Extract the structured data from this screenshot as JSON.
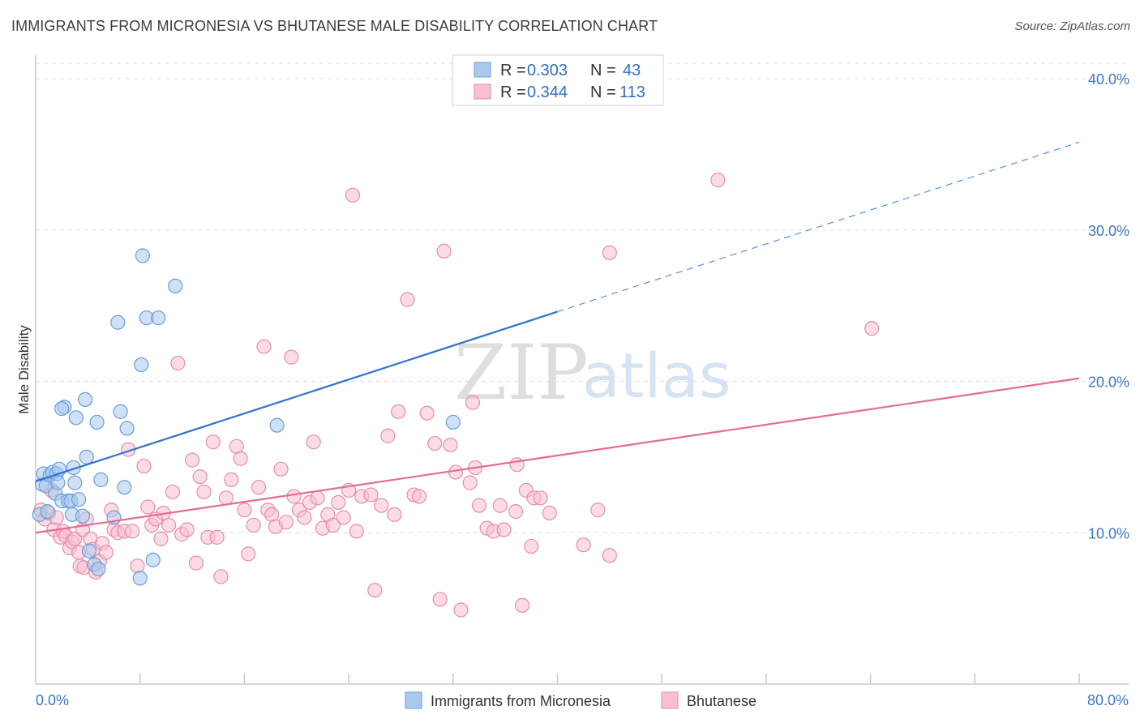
{
  "header": {
    "title": "IMMIGRANTS FROM MICRONESIA VS BHUTANESE MALE DISABILITY CORRELATION CHART",
    "source": "Source: ZipAtlas.com"
  },
  "watermark": {
    "part1": "ZIP",
    "part2": "atlas"
  },
  "colors": {
    "blue_fill": "#aac8ee",
    "blue_stroke": "#6a9ed8",
    "blue_line": "#2f73d0",
    "pink_fill": "#f7bfd0",
    "pink_stroke": "#e58eab",
    "pink_line": "#e46b98",
    "axis_text": "#3a78c8",
    "grid": "#dddddd"
  },
  "legend": {
    "rows": [
      {
        "r_label": "R =",
        "r_value": "0.303",
        "n_label": "N =",
        "n_value": "43"
      },
      {
        "r_label": "R =",
        "r_value": "0.344",
        "n_label": "N =",
        "n_value": "113"
      }
    ]
  },
  "chart_data": {
    "type": "scatter",
    "title": "IMMIGRANTS FROM MICRONESIA VS BHUTANESE MALE DISABILITY CORRELATION CHART",
    "xlabel": "",
    "ylabel": "Male Disability",
    "xlim": [
      0,
      80
    ],
    "ylim": [
      0,
      41.5
    ],
    "y_ticks": [
      10,
      20,
      30,
      40
    ],
    "y_tick_labels": [
      "10.0%",
      "20.0%",
      "30.0%",
      "40.0%"
    ],
    "x_tick_labels": [
      "0.0%",
      "80.0%"
    ],
    "x_minor_ticks": [
      8,
      16,
      24,
      32,
      40,
      48,
      56,
      64,
      72,
      80
    ],
    "series": [
      {
        "name": "Immigrants from Micronesia",
        "color": "blue",
        "R": 0.303,
        "N": 43,
        "trend": {
          "x0": 0,
          "y0": 13.4,
          "x1": 40,
          "y1": 24.6,
          "dash_to_x": 80,
          "dash_to_y": 35.8
        },
        "points": [
          [
            0.3,
            11.2
          ],
          [
            0.5,
            13.2
          ],
          [
            0.6,
            13.9
          ],
          [
            0.8,
            13.1
          ],
          [
            0.9,
            11.4
          ],
          [
            1.1,
            13.8
          ],
          [
            1.3,
            14.0
          ],
          [
            1.5,
            12.6
          ],
          [
            1.6,
            13.9
          ],
          [
            1.7,
            13.3
          ],
          [
            1.8,
            14.2
          ],
          [
            2.0,
            12.1
          ],
          [
            2.2,
            18.3
          ],
          [
            2.5,
            12.1
          ],
          [
            2.7,
            12.1
          ],
          [
            2.8,
            11.2
          ],
          [
            2.9,
            14.3
          ],
          [
            3.0,
            13.3
          ],
          [
            3.1,
            17.6
          ],
          [
            3.3,
            12.2
          ],
          [
            3.6,
            11.1
          ],
          [
            3.8,
            18.8
          ],
          [
            3.9,
            15.0
          ],
          [
            4.1,
            8.8
          ],
          [
            4.5,
            7.9
          ],
          [
            4.7,
            17.3
          ],
          [
            4.8,
            7.6
          ],
          [
            5.0,
            13.5
          ],
          [
            6.0,
            11.0
          ],
          [
            6.3,
            23.9
          ],
          [
            6.5,
            18.0
          ],
          [
            6.8,
            13.0
          ],
          [
            7.0,
            16.9
          ],
          [
            8.0,
            7.0
          ],
          [
            8.1,
            21.1
          ],
          [
            8.2,
            28.3
          ],
          [
            8.5,
            24.2
          ],
          [
            9.0,
            8.2
          ],
          [
            9.4,
            24.2
          ],
          [
            10.7,
            26.3
          ],
          [
            18.5,
            17.1
          ],
          [
            32.0,
            17.3
          ],
          [
            2.0,
            18.2
          ]
        ]
      },
      {
        "name": "Bhutanese",
        "color": "pink",
        "R": 0.344,
        "N": 113,
        "trend": {
          "x0": 0,
          "y0": 10.0,
          "x1": 80,
          "y1": 20.2
        },
        "points": [
          [
            0.4,
            11.5
          ],
          [
            0.7,
            10.9
          ],
          [
            1.0,
            11.3
          ],
          [
            1.2,
            12.8
          ],
          [
            1.4,
            10.2
          ],
          [
            1.6,
            11.0
          ],
          [
            1.9,
            9.7
          ],
          [
            2.1,
            10.1
          ],
          [
            2.3,
            9.8
          ],
          [
            2.6,
            9.0
          ],
          [
            2.8,
            9.4
          ],
          [
            3.0,
            9.6
          ],
          [
            3.3,
            8.7
          ],
          [
            3.4,
            7.8
          ],
          [
            3.6,
            10.2
          ],
          [
            3.7,
            7.7
          ],
          [
            3.9,
            10.9
          ],
          [
            4.2,
            9.6
          ],
          [
            4.4,
            8.9
          ],
          [
            4.6,
            7.4
          ],
          [
            4.9,
            8.1
          ],
          [
            5.1,
            9.3
          ],
          [
            5.4,
            8.7
          ],
          [
            5.8,
            11.5
          ],
          [
            6.0,
            10.2
          ],
          [
            6.3,
            10.0
          ],
          [
            6.8,
            10.1
          ],
          [
            7.1,
            15.5
          ],
          [
            7.4,
            10.1
          ],
          [
            7.8,
            7.8
          ],
          [
            8.3,
            14.4
          ],
          [
            8.6,
            11.7
          ],
          [
            8.9,
            10.5
          ],
          [
            9.2,
            10.9
          ],
          [
            9.6,
            9.6
          ],
          [
            9.8,
            11.3
          ],
          [
            10.2,
            10.5
          ],
          [
            10.5,
            12.7
          ],
          [
            10.9,
            21.2
          ],
          [
            11.2,
            9.9
          ],
          [
            11.6,
            10.2
          ],
          [
            12.0,
            14.8
          ],
          [
            12.3,
            8.0
          ],
          [
            12.6,
            13.7
          ],
          [
            12.9,
            12.7
          ],
          [
            13.2,
            9.7
          ],
          [
            13.6,
            16.0
          ],
          [
            13.9,
            9.7
          ],
          [
            14.2,
            7.1
          ],
          [
            14.6,
            12.3
          ],
          [
            15.0,
            13.5
          ],
          [
            15.4,
            15.7
          ],
          [
            15.7,
            14.9
          ],
          [
            16.0,
            11.5
          ],
          [
            16.3,
            8.6
          ],
          [
            16.7,
            10.5
          ],
          [
            17.1,
            13.0
          ],
          [
            17.5,
            22.3
          ],
          [
            17.8,
            11.5
          ],
          [
            18.1,
            11.2
          ],
          [
            18.4,
            10.4
          ],
          [
            18.8,
            14.2
          ],
          [
            19.2,
            10.7
          ],
          [
            19.6,
            21.6
          ],
          [
            19.8,
            12.4
          ],
          [
            20.2,
            11.5
          ],
          [
            20.6,
            11.0
          ],
          [
            21.0,
            12.0
          ],
          [
            21.3,
            16.0
          ],
          [
            21.6,
            12.3
          ],
          [
            22.0,
            10.3
          ],
          [
            22.4,
            11.2
          ],
          [
            22.8,
            10.5
          ],
          [
            23.2,
            12.0
          ],
          [
            23.6,
            11.0
          ],
          [
            24.0,
            12.8
          ],
          [
            24.3,
            32.3
          ],
          [
            24.6,
            10.1
          ],
          [
            25.0,
            12.4
          ],
          [
            25.7,
            12.5
          ],
          [
            26.0,
            6.2
          ],
          [
            26.5,
            11.8
          ],
          [
            27.0,
            16.4
          ],
          [
            27.5,
            11.2
          ],
          [
            27.8,
            18.0
          ],
          [
            28.5,
            25.4
          ],
          [
            29.0,
            12.5
          ],
          [
            29.4,
            12.4
          ],
          [
            30.0,
            17.9
          ],
          [
            30.6,
            15.9
          ],
          [
            31.0,
            5.6
          ],
          [
            31.3,
            28.6
          ],
          [
            31.8,
            15.8
          ],
          [
            32.2,
            14.0
          ],
          [
            32.6,
            4.9
          ],
          [
            33.3,
            13.3
          ],
          [
            33.5,
            18.6
          ],
          [
            33.7,
            14.3
          ],
          [
            34.0,
            11.8
          ],
          [
            34.6,
            10.3
          ],
          [
            35.1,
            10.1
          ],
          [
            35.6,
            11.8
          ],
          [
            35.9,
            10.2
          ],
          [
            36.8,
            11.4
          ],
          [
            37.3,
            5.2
          ],
          [
            37.6,
            12.8
          ],
          [
            38.0,
            9.1
          ],
          [
            38.2,
            12.3
          ],
          [
            38.7,
            12.3
          ],
          [
            39.4,
            11.3
          ],
          [
            42.0,
            9.2
          ],
          [
            43.1,
            11.5
          ],
          [
            44.0,
            8.5
          ],
          [
            44.0,
            28.5
          ],
          [
            52.3,
            33.3
          ],
          [
            64.1,
            23.5
          ],
          [
            36.9,
            14.5
          ]
        ]
      }
    ]
  },
  "bottom_legend": {
    "items": [
      "Immigrants from Micronesia",
      "Bhutanese"
    ]
  }
}
